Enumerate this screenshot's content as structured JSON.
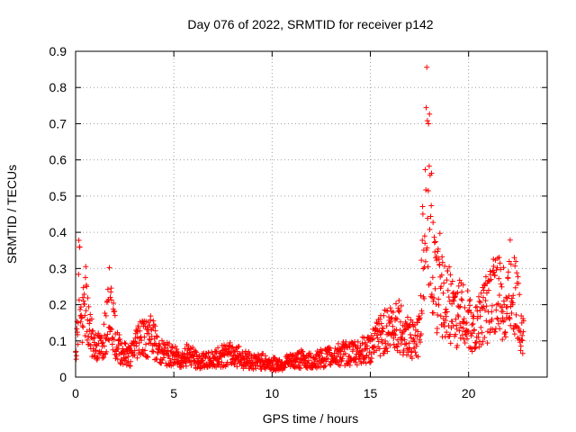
{
  "chart_data": {
    "type": "scatter",
    "title": "Day 076 of 2022, SRMTID for receiver p142",
    "xlabel": "GPS time / hours",
    "ylabel": "SRMTID / TECUs",
    "xlim": [
      0,
      24
    ],
    "ylim": [
      0,
      0.9
    ],
    "xticks": [
      0,
      5,
      10,
      15,
      20
    ],
    "yticks": [
      0,
      0.1,
      0.2,
      0.3,
      0.4,
      0.5,
      0.6,
      0.7,
      0.8,
      0.9
    ],
    "xtick_labels": [
      "0",
      "5",
      "10",
      "15",
      "20"
    ],
    "ytick_labels": [
      "0",
      "0.1",
      "0.2",
      "0.3",
      "0.4",
      "0.5",
      "0.6",
      "0.7",
      "0.8",
      "0.9"
    ],
    "grid": true,
    "marker": "+",
    "series_color": "#ff0000",
    "series": [
      {
        "name": "SRMTID",
        "envelope_points": [
          [
            0.0,
            0.13
          ],
          [
            0.1,
            0.16
          ],
          [
            0.15,
            0.37
          ],
          [
            0.2,
            0.41
          ],
          [
            0.3,
            0.19
          ],
          [
            0.4,
            0.23
          ],
          [
            0.5,
            0.3
          ],
          [
            0.6,
            0.22
          ],
          [
            0.8,
            0.15
          ],
          [
            1.0,
            0.12
          ],
          [
            1.3,
            0.11
          ],
          [
            1.6,
            0.19
          ],
          [
            1.75,
            0.3
          ],
          [
            1.9,
            0.2
          ],
          [
            2.1,
            0.12
          ],
          [
            2.5,
            0.09
          ],
          [
            2.8,
            0.08
          ],
          [
            3.0,
            0.12
          ],
          [
            3.3,
            0.17
          ],
          [
            3.6,
            0.14
          ],
          [
            3.9,
            0.16
          ],
          [
            4.2,
            0.1
          ],
          [
            4.6,
            0.09
          ],
          [
            5.0,
            0.08
          ],
          [
            5.4,
            0.07
          ],
          [
            5.8,
            0.09
          ],
          [
            6.2,
            0.06
          ],
          [
            6.6,
            0.06
          ],
          [
            7.0,
            0.07
          ],
          [
            7.5,
            0.08
          ],
          [
            8.0,
            0.09
          ],
          [
            8.5,
            0.07
          ],
          [
            9.0,
            0.06
          ],
          [
            9.5,
            0.06
          ],
          [
            10.0,
            0.05
          ],
          [
            10.5,
            0.05
          ],
          [
            11.0,
            0.06
          ],
          [
            11.5,
            0.07
          ],
          [
            12.0,
            0.06
          ],
          [
            12.5,
            0.07
          ],
          [
            13.0,
            0.08
          ],
          [
            13.5,
            0.09
          ],
          [
            14.0,
            0.09
          ],
          [
            14.5,
            0.1
          ],
          [
            15.0,
            0.11
          ],
          [
            15.3,
            0.14
          ],
          [
            15.6,
            0.17
          ],
          [
            16.0,
            0.19
          ],
          [
            16.3,
            0.21
          ],
          [
            16.6,
            0.18
          ],
          [
            17.0,
            0.15
          ],
          [
            17.3,
            0.13
          ],
          [
            17.5,
            0.16
          ],
          [
            17.7,
            0.55
          ],
          [
            17.85,
            0.8
          ],
          [
            18.0,
            0.7
          ],
          [
            18.1,
            0.55
          ],
          [
            18.2,
            0.42
          ],
          [
            18.35,
            0.32
          ],
          [
            18.5,
            0.38
          ],
          [
            18.7,
            0.3
          ],
          [
            19.0,
            0.28
          ],
          [
            19.3,
            0.22
          ],
          [
            19.6,
            0.25
          ],
          [
            20.0,
            0.22
          ],
          [
            20.3,
            0.16
          ],
          [
            20.6,
            0.24
          ],
          [
            21.0,
            0.26
          ],
          [
            21.3,
            0.34
          ],
          [
            21.6,
            0.3
          ],
          [
            21.9,
            0.27
          ],
          [
            22.2,
            0.38
          ],
          [
            22.4,
            0.31
          ],
          [
            22.6,
            0.22
          ],
          [
            22.8,
            0.16
          ]
        ]
      }
    ]
  }
}
